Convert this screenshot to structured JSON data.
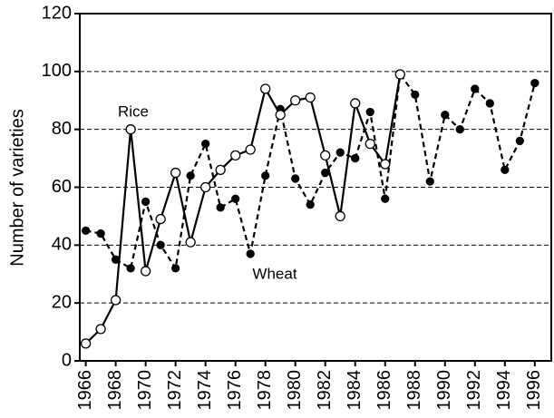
{
  "chart_data": {
    "type": "line",
    "ylabel": "Number of varieties",
    "xlim": [
      1965.6,
      1997.1
    ],
    "xticks": [
      1966,
      1968,
      1970,
      1972,
      1974,
      1976,
      1978,
      1980,
      1982,
      1984,
      1986,
      1988,
      1990,
      1992,
      1994,
      1996
    ],
    "ylim": [
      0,
      120
    ],
    "yticks": [
      0,
      20,
      40,
      60,
      80,
      100,
      120
    ],
    "grid": true,
    "annotations": [
      "Rice",
      "Wheat"
    ],
    "series": [
      {
        "name": "Rice",
        "color": "#000000",
        "marker": "open",
        "dashed": false,
        "x": [
          1966,
          1967,
          1968,
          1969,
          1970,
          1971,
          1972,
          1973,
          1974,
          1975,
          1976,
          1977,
          1978,
          1979,
          1980,
          1981,
          1982,
          1983,
          1984,
          1985,
          1986,
          1987
        ],
        "values": [
          6,
          11,
          21,
          80,
          31,
          49,
          65,
          41,
          60,
          66,
          71,
          73,
          94,
          85,
          90,
          91,
          71,
          50,
          89,
          75,
          68,
          99
        ]
      },
      {
        "name": "Wheat",
        "color": "#000000",
        "marker": "filled",
        "dashed": true,
        "x": [
          1966,
          1967,
          1968,
          1969,
          1970,
          1971,
          1972,
          1973,
          1974,
          1975,
          1976,
          1977,
          1978,
          1979,
          1980,
          1981,
          1982,
          1983,
          1984,
          1985,
          1986,
          1987,
          1988,
          1989,
          1990,
          1991,
          1992,
          1993,
          1994,
          1995,
          1996
        ],
        "values": [
          45,
          44,
          35,
          32,
          55,
          40,
          32,
          64,
          75,
          53,
          56,
          37,
          64,
          87,
          63,
          54,
          65,
          72,
          70,
          86,
          56,
          99,
          92,
          62,
          85,
          80,
          94,
          89,
          66,
          76,
          96
        ]
      }
    ]
  }
}
